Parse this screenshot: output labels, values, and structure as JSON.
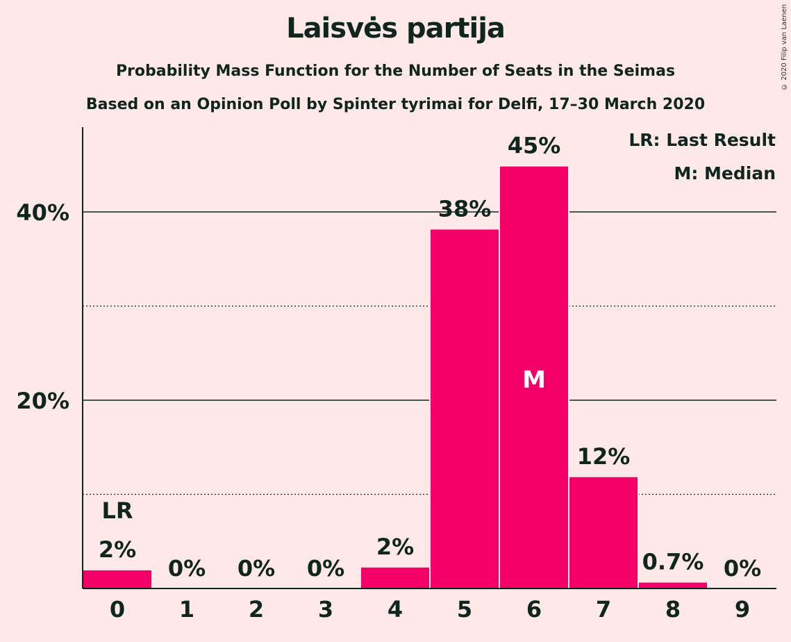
{
  "title": "Laisvės partija",
  "subtitle": "Probability Mass Function for the Number of Seats in the Seimas",
  "subtitle2": "Based on an Opinion Poll by Spinter tyrimai for Delfi, 17–30 March 2020",
  "copyright": "© 2020 Filip van Laenen",
  "colors": {
    "bar": "#F5006A",
    "background": "#FFE8E8",
    "text": "#0f261e"
  },
  "chart_data": {
    "type": "bar",
    "categories": [
      "0",
      "1",
      "2",
      "3",
      "4",
      "5",
      "6",
      "7",
      "8",
      "9"
    ],
    "values": [
      2,
      0,
      0,
      0,
      2.3,
      38.2,
      44.9,
      11.9,
      0.7,
      0
    ],
    "data_labels": [
      "2%",
      "0%",
      "0%",
      "0%",
      "2%",
      "38%",
      "45%",
      "12%",
      "0.7%",
      "0%"
    ],
    "ylim": [
      0,
      49
    ],
    "y_ticks_major": [
      20,
      40
    ],
    "y_tick_labels": [
      "20%",
      "40%"
    ],
    "y_gridlines_dotted": [
      10,
      30
    ],
    "last_result_index": 0,
    "median_index": 6,
    "last_result_marker": "LR",
    "median_marker": "M",
    "legend": [
      "LR: Last Result",
      "M: Median"
    ],
    "legend_position": "top-right"
  }
}
